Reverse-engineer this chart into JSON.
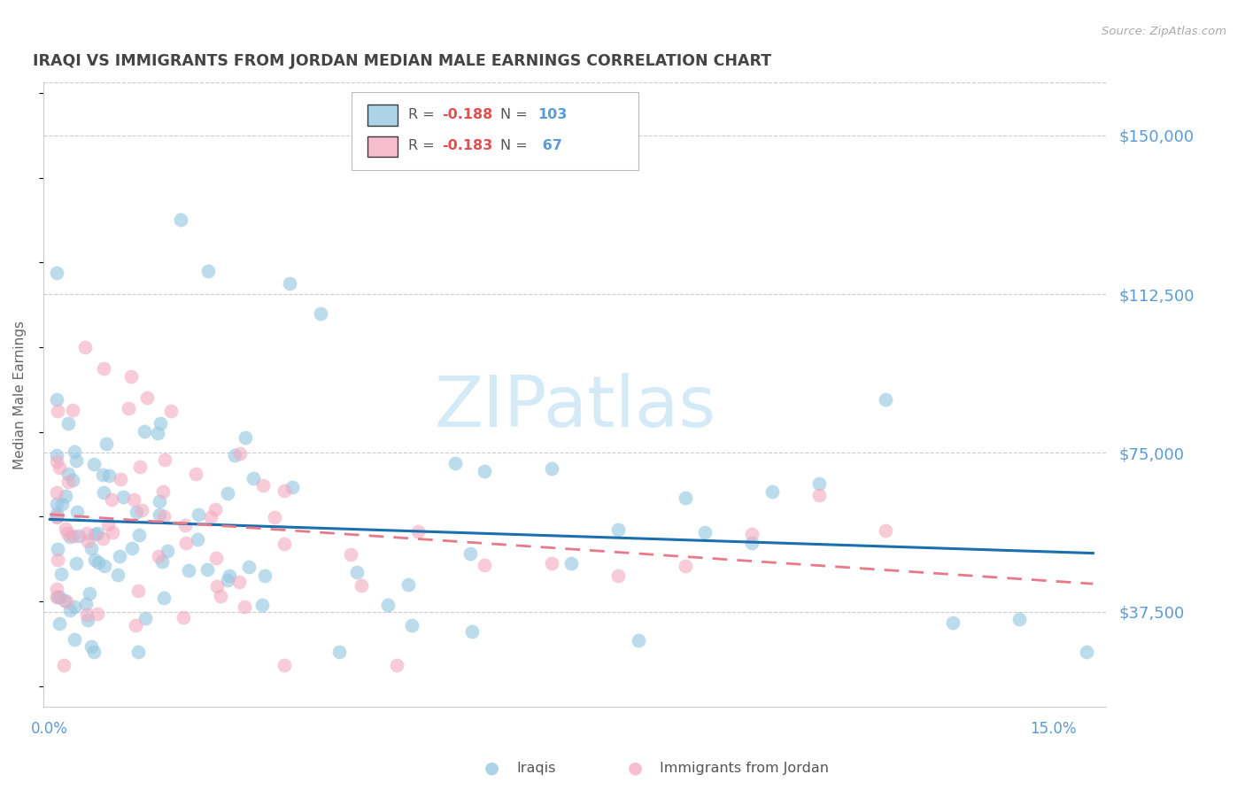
{
  "title": "IRAQI VS IMMIGRANTS FROM JORDAN MEDIAN MALE EARNINGS CORRELATION CHART",
  "source": "Source: ZipAtlas.com",
  "ylabel": "Median Male Earnings",
  "ytick_labels": [
    "$150,000",
    "$112,500",
    "$75,000",
    "$37,500"
  ],
  "ytick_values": [
    150000,
    112500,
    75000,
    37500
  ],
  "ymin": 15000,
  "ymax": 162500,
  "xmin": -0.001,
  "xmax": 0.158,
  "watermark": "ZIPatlas",
  "iraqis_color": "#92c5de",
  "jordan_color": "#f4a9c0",
  "iraqis_line_color": "#1a6faf",
  "jordan_line_color": "#e8798a",
  "title_color": "#444444",
  "axis_color": "#5b9bd5",
  "background_color": "#ffffff",
  "grid_color": "#cccccc",
  "r_color": "#e05050",
  "n_color_iraqis": "#5b9bd5",
  "n_color_jordan": "#5b9bd5",
  "legend_r1": "R = -0.188",
  "legend_n1": "N = 103",
  "legend_r2": "R = -0.183",
  "legend_n2": "N =  67",
  "bottom_label1": "Iraqis",
  "bottom_label2": "Immigrants from Jordan"
}
